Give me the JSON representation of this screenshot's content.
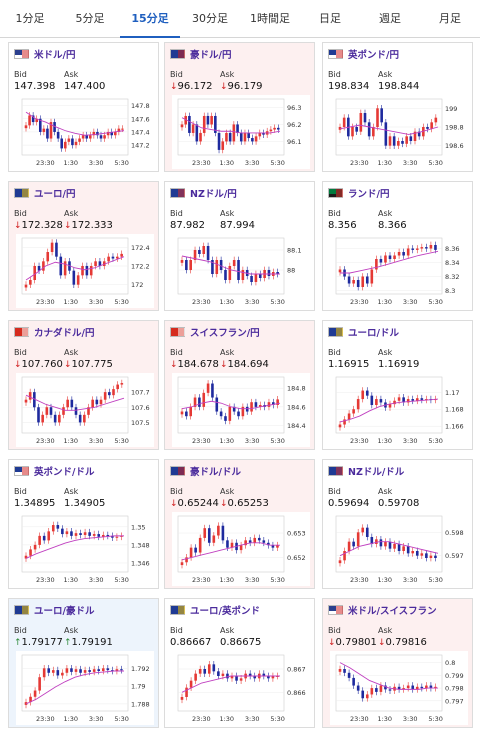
{
  "tabs": [
    {
      "label": "1分足",
      "active": false
    },
    {
      "label": "5分足",
      "active": false
    },
    {
      "label": "15分足",
      "active": true
    },
    {
      "label": "30分足",
      "active": false
    },
    {
      "label": "1時間足",
      "active": false
    },
    {
      "label": "日足",
      "active": false
    },
    {
      "label": "週足",
      "active": false
    },
    {
      "label": "月足",
      "active": false
    }
  ],
  "labels": {
    "bid": "Bid",
    "ask": "Ask"
  },
  "colors": {
    "tab_active": "#1f5fbf",
    "pair_title": "#4b2b9c",
    "down_arrow": "#d02020",
    "up_arrow": "#2e8b3a",
    "candle_up": "#e53935",
    "candle_down": "#1e2a9e",
    "moving_average": "#c040c0"
  },
  "pairs": [
    {
      "name": "米ドル/円",
      "flag": "us-flag",
      "trend": "flat",
      "bid": "147.398",
      "ask": "147.400"
    },
    {
      "name": "豪ドル/円",
      "flag": "au-flag",
      "trend": "down",
      "bid": "96.172",
      "ask": "96.179"
    },
    {
      "name": "英ポンド/円",
      "flag": "uk-flag",
      "trend": "flat",
      "bid": "198.834",
      "ask": "198.844"
    },
    {
      "name": "ユーロ/円",
      "flag": "eu-flag",
      "trend": "down",
      "bid": "172.328",
      "ask": "172.333"
    },
    {
      "name": "NZドル/円",
      "flag": "nz-flag",
      "trend": "flat",
      "bid": "87.982",
      "ask": "87.994"
    },
    {
      "name": "ランド/円",
      "flag": "za-flag",
      "trend": "flat",
      "bid": "8.356",
      "ask": "8.366"
    },
    {
      "name": "カナダドル/円",
      "flag": "ca-flag",
      "trend": "down",
      "bid": "107.760",
      "ask": "107.775"
    },
    {
      "name": "スイスフラン/円",
      "flag": "ch-flag",
      "trend": "down",
      "bid": "184.678",
      "ask": "184.694"
    },
    {
      "name": "ユーロ/ドル",
      "flag": "eu-flag",
      "trend": "flat",
      "bid": "1.16915",
      "ask": "1.16919"
    },
    {
      "name": "英ポンド/ドル",
      "flag": "uk-flag",
      "trend": "flat",
      "bid": "1.34895",
      "ask": "1.34905"
    },
    {
      "name": "豪ドル/ドル",
      "flag": "au-flag",
      "trend": "down",
      "bid": "0.65244",
      "ask": "0.65253"
    },
    {
      "name": "NZドル/ドル",
      "flag": "nz-flag",
      "trend": "flat",
      "bid": "0.59694",
      "ask": "0.59708"
    },
    {
      "name": "ユーロ/豪ドル",
      "flag": "eu-flag",
      "trend": "up",
      "bid": "1.79177",
      "ask": "1.79191"
    },
    {
      "name": "ユーロ/英ポンド",
      "flag": "eu-flag",
      "trend": "flat",
      "bid": "0.86667",
      "ask": "0.86675"
    },
    {
      "name": "米ドル/スイスフラン",
      "flag": "us-flag",
      "trend": "down",
      "bid": "0.79801",
      "ask": "0.79816"
    }
  ],
  "chart_data": [
    {
      "type": "candlestick",
      "x_ticks": [
        "23:30",
        "1:30",
        "3:30",
        "5:30"
      ],
      "y_ticks": [
        147.8,
        147.6,
        147.4,
        147.2
      ],
      "ylim": [
        147.05,
        147.9
      ],
      "closes": [
        147.5,
        147.65,
        147.55,
        147.6,
        147.4,
        147.45,
        147.3,
        147.55,
        147.4,
        147.3,
        147.15,
        147.25,
        147.3,
        147.2,
        147.25,
        147.3,
        147.35,
        147.3,
        147.35,
        147.4,
        147.35,
        147.3,
        147.35,
        147.4,
        147.35,
        147.4,
        147.45,
        147.45
      ],
      "ma": [
        147.7,
        147.6,
        147.55,
        147.48,
        147.42,
        147.38,
        147.35,
        147.36,
        147.38,
        147.4,
        147.42
      ]
    },
    {
      "type": "candlestick",
      "x_ticks": [
        "23:30",
        "1:30",
        "3:30",
        "5:30"
      ],
      "y_ticks": [
        96.3,
        96.2,
        96.1
      ],
      "ylim": [
        96.02,
        96.35
      ],
      "closes": [
        96.2,
        96.25,
        96.15,
        96.2,
        96.1,
        96.15,
        96.25,
        96.2,
        96.25,
        96.15,
        96.05,
        96.1,
        96.15,
        96.1,
        96.2,
        96.15,
        96.1,
        96.15,
        96.12,
        96.1,
        96.13,
        96.15,
        96.14,
        96.16,
        96.17,
        96.18,
        96.17
      ],
      "ma": [
        96.24,
        96.21,
        96.18,
        96.17,
        96.16,
        96.16,
        96.15,
        96.15,
        96.15,
        96.15,
        96.16
      ]
    },
    {
      "type": "candlestick",
      "x_ticks": [
        "23:30",
        "1:30",
        "3:30",
        "5:30"
      ],
      "y_ticks": [
        199,
        198.8,
        198.6
      ],
      "ylim": [
        198.5,
        199.1
      ],
      "closes": [
        198.8,
        198.9,
        198.7,
        198.8,
        198.75,
        198.95,
        198.85,
        198.7,
        198.8,
        199.0,
        198.85,
        198.6,
        198.7,
        198.6,
        198.65,
        198.62,
        198.7,
        198.65,
        198.75,
        198.7,
        198.8,
        198.78,
        198.85,
        198.9
      ],
      "ma": [
        198.78,
        198.8,
        198.82,
        198.8,
        198.78,
        198.76,
        198.74,
        198.72,
        198.74,
        198.77,
        198.8
      ]
    },
    {
      "type": "candlestick",
      "x_ticks": [
        "23:30",
        "1:30",
        "3:30",
        "5:30"
      ],
      "y_ticks": [
        172.4,
        172.2,
        172
      ],
      "ylim": [
        171.9,
        172.5
      ],
      "closes": [
        172.0,
        172.05,
        172.2,
        172.15,
        172.25,
        172.35,
        172.45,
        172.3,
        172.1,
        172.25,
        172.15,
        172.0,
        172.1,
        172.2,
        172.1,
        172.2,
        172.25,
        172.2,
        172.25,
        172.3,
        172.28,
        172.3,
        172.33
      ],
      "ma": [
        172.05,
        172.12,
        172.2,
        172.24,
        172.22,
        172.18,
        172.16,
        172.18,
        172.22,
        172.26,
        172.3
      ]
    },
    {
      "type": "candlestick",
      "x_ticks": [
        "23:30",
        "1:30",
        "3:30",
        "5:30"
      ],
      "y_ticks": [
        88.1,
        88
      ],
      "ylim": [
        87.88,
        88.16
      ],
      "closes": [
        88.05,
        88.0,
        88.05,
        88.1,
        88.08,
        88.12,
        88.05,
        87.98,
        88.05,
        88.0,
        87.95,
        88.02,
        88.05,
        87.95,
        88.0,
        87.97,
        87.94,
        87.98,
        87.96,
        88.0,
        87.97,
        87.99,
        87.98
      ],
      "ma": [
        88.07,
        88.06,
        88.05,
        88.04,
        88.02,
        88.0,
        87.99,
        87.98,
        87.98,
        87.98,
        87.98
      ]
    },
    {
      "type": "candlestick",
      "x_ticks": [
        "23:30",
        "1:30",
        "3:30",
        "5:30"
      ],
      "y_ticks": [
        8.36,
        8.34,
        8.32,
        8.3
      ],
      "ylim": [
        8.295,
        8.375
      ],
      "closes": [
        8.33,
        8.32,
        8.31,
        8.315,
        8.305,
        8.32,
        8.31,
        8.33,
        8.345,
        8.34,
        8.35,
        8.345,
        8.35,
        8.355,
        8.35,
        8.36,
        8.358,
        8.36,
        8.362,
        8.36,
        8.365,
        8.358
      ],
      "ma": [
        8.325,
        8.325,
        8.328,
        8.331,
        8.334,
        8.338,
        8.342,
        8.346,
        8.35,
        8.353,
        8.356
      ]
    },
    {
      "type": "candlestick",
      "x_ticks": [
        "23:30",
        "1:30",
        "3:30",
        "5:30"
      ],
      "y_ticks": [
        107.7,
        107.6,
        107.5
      ],
      "ylim": [
        107.43,
        107.8
      ],
      "closes": [
        107.65,
        107.7,
        107.6,
        107.5,
        107.55,
        107.6,
        107.55,
        107.5,
        107.55,
        107.6,
        107.65,
        107.6,
        107.55,
        107.5,
        107.55,
        107.6,
        107.65,
        107.62,
        107.65,
        107.7,
        107.68,
        107.72,
        107.75,
        107.76
      ],
      "ma": [
        107.68,
        107.65,
        107.62,
        107.6,
        107.58,
        107.58,
        107.59,
        107.6,
        107.62,
        107.64,
        107.66
      ]
    },
    {
      "type": "candlestick",
      "x_ticks": [
        "23:30",
        "1:30",
        "3:30",
        "5:30"
      ],
      "y_ticks": [
        184.8,
        184.6,
        184.4
      ],
      "ylim": [
        184.32,
        184.92
      ],
      "closes": [
        184.55,
        184.5,
        184.6,
        184.7,
        184.6,
        184.75,
        184.85,
        184.7,
        184.55,
        184.5,
        184.45,
        184.6,
        184.55,
        184.5,
        184.6,
        184.55,
        184.65,
        184.6,
        184.62,
        184.6,
        184.65,
        184.62,
        184.68
      ],
      "ma": [
        184.58,
        184.6,
        184.64,
        184.66,
        184.64,
        184.6,
        184.58,
        184.58,
        184.6,
        184.62,
        184.64
      ]
    },
    {
      "type": "candlestick",
      "x_ticks": [
        "23:30",
        "1:30",
        "3:30",
        "5:30"
      ],
      "y_ticks": [
        1.17,
        1.168,
        1.166
      ],
      "ylim": [
        1.1652,
        1.1718
      ],
      "closes": [
        1.1662,
        1.1668,
        1.1675,
        1.168,
        1.1692,
        1.1702,
        1.1696,
        1.1685,
        1.1692,
        1.1688,
        1.1682,
        1.1686,
        1.169,
        1.1694,
        1.1688,
        1.1692,
        1.169,
        1.1693,
        1.1691,
        1.1692,
        1.1691,
        1.1692
      ],
      "ma": [
        1.1665,
        1.1668,
        1.1672,
        1.1678,
        1.1683,
        1.1686,
        1.1688,
        1.1689,
        1.169,
        1.1691,
        1.1692
      ]
    },
    {
      "type": "candlestick",
      "x_ticks": [
        "23:30",
        "1:30",
        "3:30",
        "5:30"
      ],
      "y_ticks": [
        1.35,
        1.348,
        1.346
      ],
      "ylim": [
        1.345,
        1.3512
      ],
      "closes": [
        1.3468,
        1.3475,
        1.348,
        1.349,
        1.3485,
        1.3495,
        1.3502,
        1.3498,
        1.3492,
        1.3495,
        1.349,
        1.3493,
        1.3491,
        1.3494,
        1.349,
        1.3492,
        1.3489,
        1.3491,
        1.349,
        1.3488,
        1.3489,
        1.349
      ],
      "ma": [
        1.3465,
        1.347,
        1.3474,
        1.3478,
        1.3482,
        1.3485,
        1.3487,
        1.3488,
        1.3489,
        1.349,
        1.349
      ]
    },
    {
      "type": "candlestick",
      "x_ticks": [
        "23:30",
        "1:30",
        "3:30",
        "5:30"
      ],
      "y_ticks": [
        0.653,
        0.652
      ],
      "ylim": [
        0.6514,
        0.6537
      ],
      "closes": [
        0.6518,
        0.652,
        0.6524,
        0.6522,
        0.6528,
        0.6532,
        0.6526,
        0.6529,
        0.6533,
        0.6527,
        0.6524,
        0.6526,
        0.6523,
        0.6525,
        0.6527,
        0.6526,
        0.6528,
        0.6527,
        0.6526,
        0.6525,
        0.6524,
        0.6525
      ],
      "ma": [
        0.6519,
        0.652,
        0.6521,
        0.6522,
        0.6523,
        0.6524,
        0.6525,
        0.6526,
        0.6526,
        0.6525,
        0.6525
      ]
    },
    {
      "type": "candlestick",
      "x_ticks": [
        "23:30",
        "1:30",
        "3:30",
        "5:30"
      ],
      "y_ticks": [
        0.598,
        0.597
      ],
      "ylim": [
        0.5963,
        0.5987
      ],
      "closes": [
        0.5968,
        0.5972,
        0.5976,
        0.5974,
        0.598,
        0.5982,
        0.5978,
        0.5975,
        0.5977,
        0.5974,
        0.5976,
        0.5973,
        0.5975,
        0.5972,
        0.5974,
        0.5971,
        0.5972,
        0.597,
        0.5971,
        0.5969,
        0.597,
        0.5969
      ],
      "ma": [
        0.597,
        0.5972,
        0.5974,
        0.5975,
        0.5976,
        0.5976,
        0.5975,
        0.5974,
        0.5973,
        0.5972,
        0.5971
      ]
    },
    {
      "type": "candlestick",
      "x_ticks": [
        "23:30",
        "1:30",
        "3:30",
        "5:30"
      ],
      "y_ticks": [
        1.792,
        1.79,
        1.788
      ],
      "ylim": [
        1.7872,
        1.7935
      ],
      "closes": [
        1.7882,
        1.7888,
        1.7895,
        1.791,
        1.792,
        1.7915,
        1.7918,
        1.7912,
        1.7915,
        1.792,
        1.7916,
        1.7919,
        1.7915,
        1.7918,
        1.7916,
        1.7919,
        1.7917,
        1.792,
        1.7918,
        1.7917,
        1.7919,
        1.7918
      ],
      "ma": [
        1.788,
        1.7885,
        1.7892,
        1.7899,
        1.7905,
        1.791,
        1.7913,
        1.7915,
        1.7916,
        1.7917,
        1.7917
      ]
    },
    {
      "type": "candlestick",
      "x_ticks": [
        "23:30",
        "1:30",
        "3:30",
        "5:30"
      ],
      "y_ticks": [
        0.867,
        0.866
      ],
      "ylim": [
        0.8652,
        0.8676
      ],
      "closes": [
        0.8658,
        0.8662,
        0.8665,
        0.8668,
        0.867,
        0.8668,
        0.8672,
        0.8669,
        0.8667,
        0.8668,
        0.8666,
        0.8667,
        0.8665,
        0.8666,
        0.8668,
        0.8667,
        0.8666,
        0.8668,
        0.8667,
        0.8666,
        0.8667,
        0.8667
      ],
      "ma": [
        0.866,
        0.8662,
        0.8664,
        0.8665,
        0.8666,
        0.8667,
        0.8667,
        0.8667,
        0.8667,
        0.8667,
        0.8667
      ]
    },
    {
      "type": "candlestick",
      "x_ticks": [
        "23:30",
        "1:30",
        "3:30",
        "5:30"
      ],
      "y_ticks": [
        0.8,
        0.799,
        0.798,
        0.797
      ],
      "ylim": [
        0.7962,
        0.8006
      ],
      "closes": [
        0.7995,
        0.7992,
        0.7988,
        0.7982,
        0.7978,
        0.7972,
        0.7975,
        0.798,
        0.7977,
        0.7982,
        0.7979,
        0.7978,
        0.7981,
        0.7979,
        0.798,
        0.7982,
        0.7979,
        0.7981,
        0.798,
        0.7982,
        0.798,
        0.7981
      ],
      "ma": [
        0.8,
        0.7996,
        0.7991,
        0.7986,
        0.7983,
        0.798,
        0.7979,
        0.7979,
        0.7979,
        0.798,
        0.798
      ]
    }
  ]
}
